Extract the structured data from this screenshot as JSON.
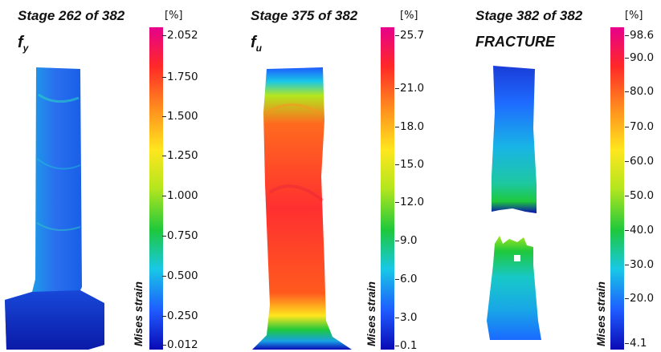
{
  "panels": [
    {
      "stage": "Stage 262 of 382",
      "label_main": "f",
      "label_sub": "y",
      "unit": "[%]",
      "axis_label": "Mises strain",
      "ticks": [
        "2.052",
        "1.750",
        "1.500",
        "1.250",
        "1.000",
        "0.750",
        "0.500",
        "0.250",
        "0.012"
      ]
    },
    {
      "stage": "Stage 375 of 382",
      "label_main": "f",
      "label_sub": "u",
      "unit": "[%]",
      "axis_label": "Mises strain",
      "ticks": [
        "25.7",
        "21.0",
        "18.0",
        "15.0",
        "12.0",
        "9.0",
        "6.0",
        "3.0",
        "0.1"
      ]
    },
    {
      "stage": "Stage 382 of 382",
      "label_main": "FRACTURE",
      "unit": "[%]",
      "axis_label": "Mises strain",
      "ticks": [
        "98.6",
        "90.0",
        "80.0",
        "70.0",
        "60.0",
        "50.0",
        "40.0",
        "30.0",
        "20.0",
        "4.1"
      ]
    }
  ],
  "colormap": [
    "#0a0ab4",
    "#1e5aff",
    "#18c8e6",
    "#1ec83c",
    "#b4e61e",
    "#ffe61e",
    "#ff8c1e",
    "#ff2828",
    "#e6008c"
  ]
}
